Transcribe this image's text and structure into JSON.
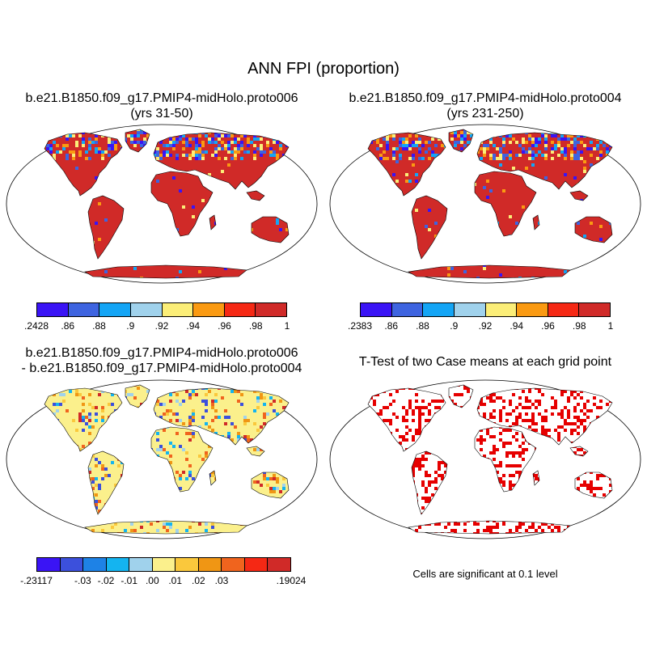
{
  "title": "ANN FPI (proportion)",
  "panels": {
    "case1": {
      "title_line1": "b.e21.B1850.f09_g17.PMIP4-midHolo.proto006",
      "title_line2": "(yrs 31-50)"
    },
    "case2": {
      "title_line1": "b.e21.B1850.f09_g17.PMIP4-midHolo.proto004",
      "title_line2": "(yrs 231-250)"
    },
    "diff": {
      "title_line1": "b.e21.B1850.f09_g17.PMIP4-midHolo.proto006",
      "title_line2": "- b.e21.B1850.f09_g17.PMIP4-midHolo.proto004"
    },
    "ttest": {
      "title_line1": "T-Test of two Case means at each grid point",
      "note": "Cells are significant at 0.1 level"
    }
  },
  "colorbars": {
    "case1": {
      "colors": [
        "#3a14f5",
        "#3e64e0",
        "#14a5f5",
        "#a0d2ec",
        "#fbee78",
        "#fa9a12",
        "#f52814",
        "#d02a28"
      ],
      "labels": [
        ".2428",
        ".86",
        ".88",
        ".9",
        ".92",
        ".94",
        ".96",
        ".98",
        "1"
      ]
    },
    "case2": {
      "colors": [
        "#3a14f5",
        "#3e64e0",
        "#14a5f5",
        "#a0d2ec",
        "#fbee78",
        "#fa9a12",
        "#f52814",
        "#d02a28"
      ],
      "labels": [
        ".2383",
        ".86",
        ".88",
        ".9",
        ".92",
        ".94",
        ".96",
        ".98",
        "1"
      ]
    },
    "diff": {
      "colors": [
        "#3a14f5",
        "#3c50dc",
        "#1e82e6",
        "#14b4f0",
        "#a0d2ec",
        "#fbf08c",
        "#fac83c",
        "#f09614",
        "#f0641e",
        "#f52814",
        "#d02a28"
      ],
      "labels": [
        "-.23117",
        "-.03",
        "-.02",
        "-.01",
        ".00",
        ".01",
        ".02",
        ".03",
        ".19024"
      ]
    }
  },
  "colors": {
    "land_case": "#d02a28",
    "land_diff": "#fbf08c",
    "significant": "#e60000",
    "ocean": "#ffffff"
  }
}
